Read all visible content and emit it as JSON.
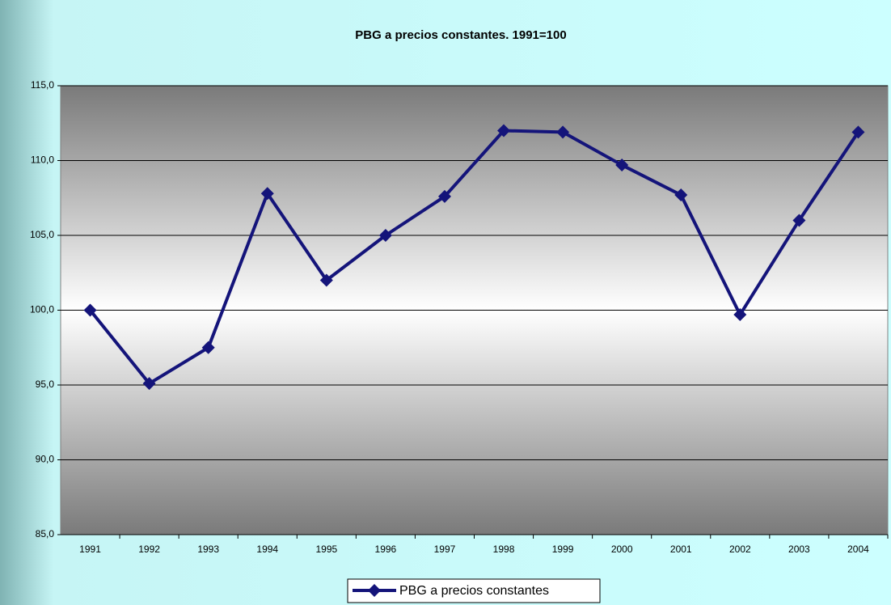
{
  "chart_data": {
    "type": "line",
    "title": "PBG a precios constantes. 1991=100",
    "categories": [
      "1991",
      "1992",
      "1993",
      "1994",
      "1995",
      "1996",
      "1997",
      "1998",
      "1999",
      "2000",
      "2001",
      "2002",
      "2003",
      "2004"
    ],
    "series": [
      {
        "name": "PBG a precios constantes",
        "color": "#14147a",
        "values": [
          100.0,
          95.1,
          97.5,
          107.8,
          102.0,
          105.0,
          107.6,
          112.0,
          111.9,
          109.7,
          107.7,
          99.7,
          106.0,
          111.9
        ]
      }
    ],
    "ylim": [
      85,
      115
    ],
    "yticks": [
      {
        "value": 85,
        "label": "85,0"
      },
      {
        "value": 90,
        "label": "90,0"
      },
      {
        "value": 95,
        "label": "95,0"
      },
      {
        "value": 100,
        "label": "100,0"
      },
      {
        "value": 105,
        "label": "105,0"
      },
      {
        "value": 110,
        "label": "110,0"
      },
      {
        "value": 115,
        "label": "115,0"
      }
    ],
    "grid": true,
    "legend": "bottom"
  }
}
